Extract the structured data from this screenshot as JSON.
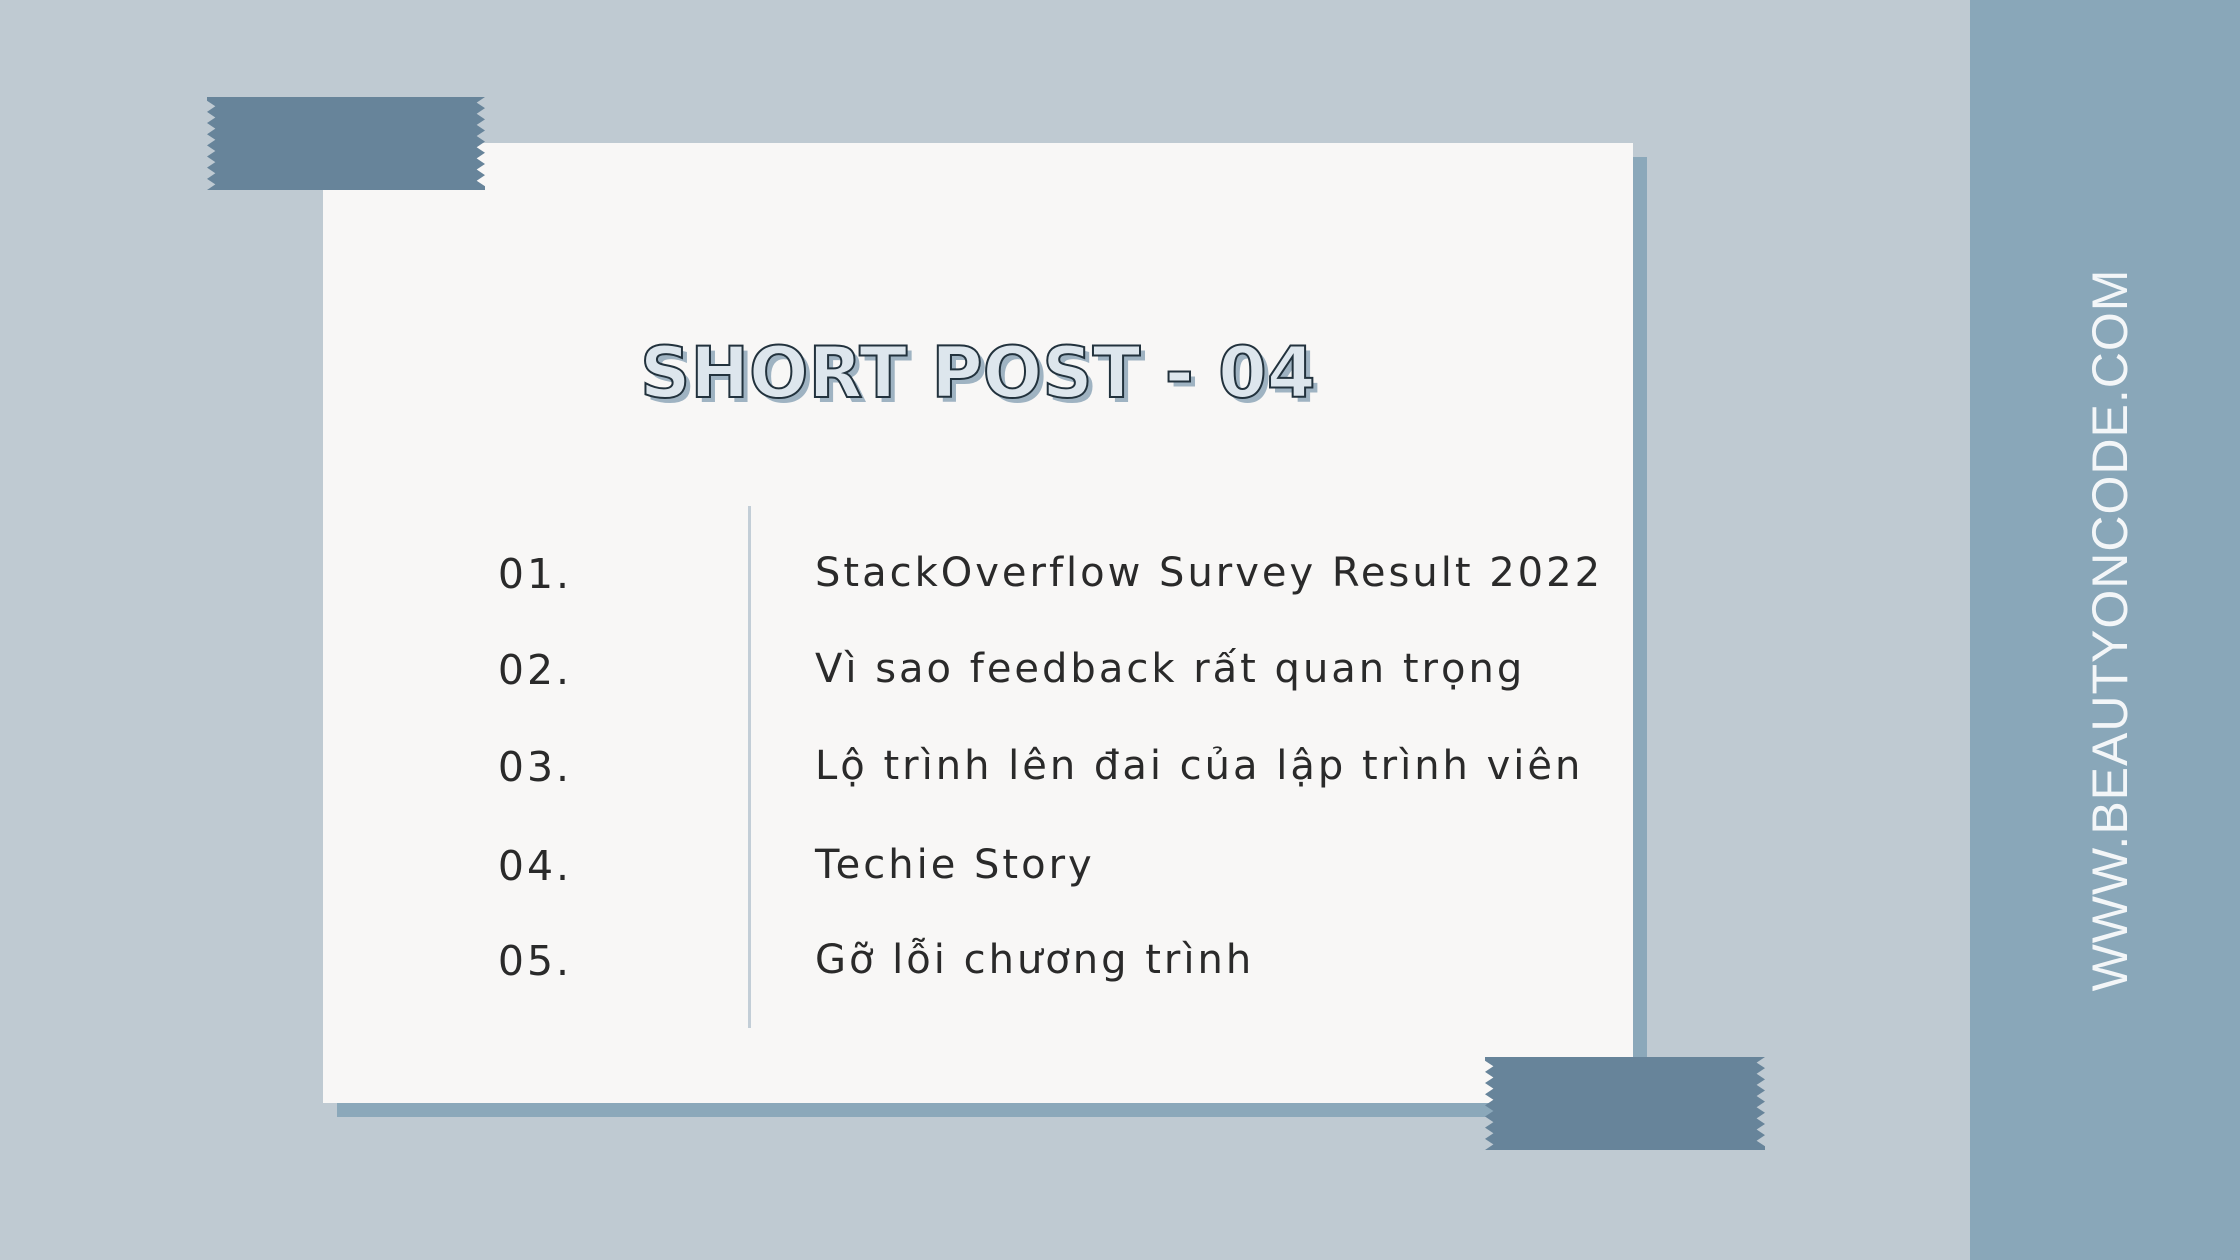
{
  "side": {
    "url": "WWW.BEAUTYONCODE.COM"
  },
  "card": {
    "title": "SHORT POST - 04",
    "items": [
      {
        "number": "01.",
        "label": "StackOverflow Survey Result 2022"
      },
      {
        "number": "02.",
        "label": "Vì sao feedback rất quan trọng"
      },
      {
        "number": "03.",
        "label": "Lộ trình lên đai của lập trình viên"
      },
      {
        "number": "04.",
        "label": "Techie Story"
      },
      {
        "number": "05.",
        "label": "Gỡ lỗi chương trình"
      }
    ]
  },
  "colors": {
    "background": "#bfcad2",
    "side_strip": "#89a7b9",
    "card": "#f8f7f6",
    "tape": "#67849a",
    "text": "#2a2a2a"
  }
}
